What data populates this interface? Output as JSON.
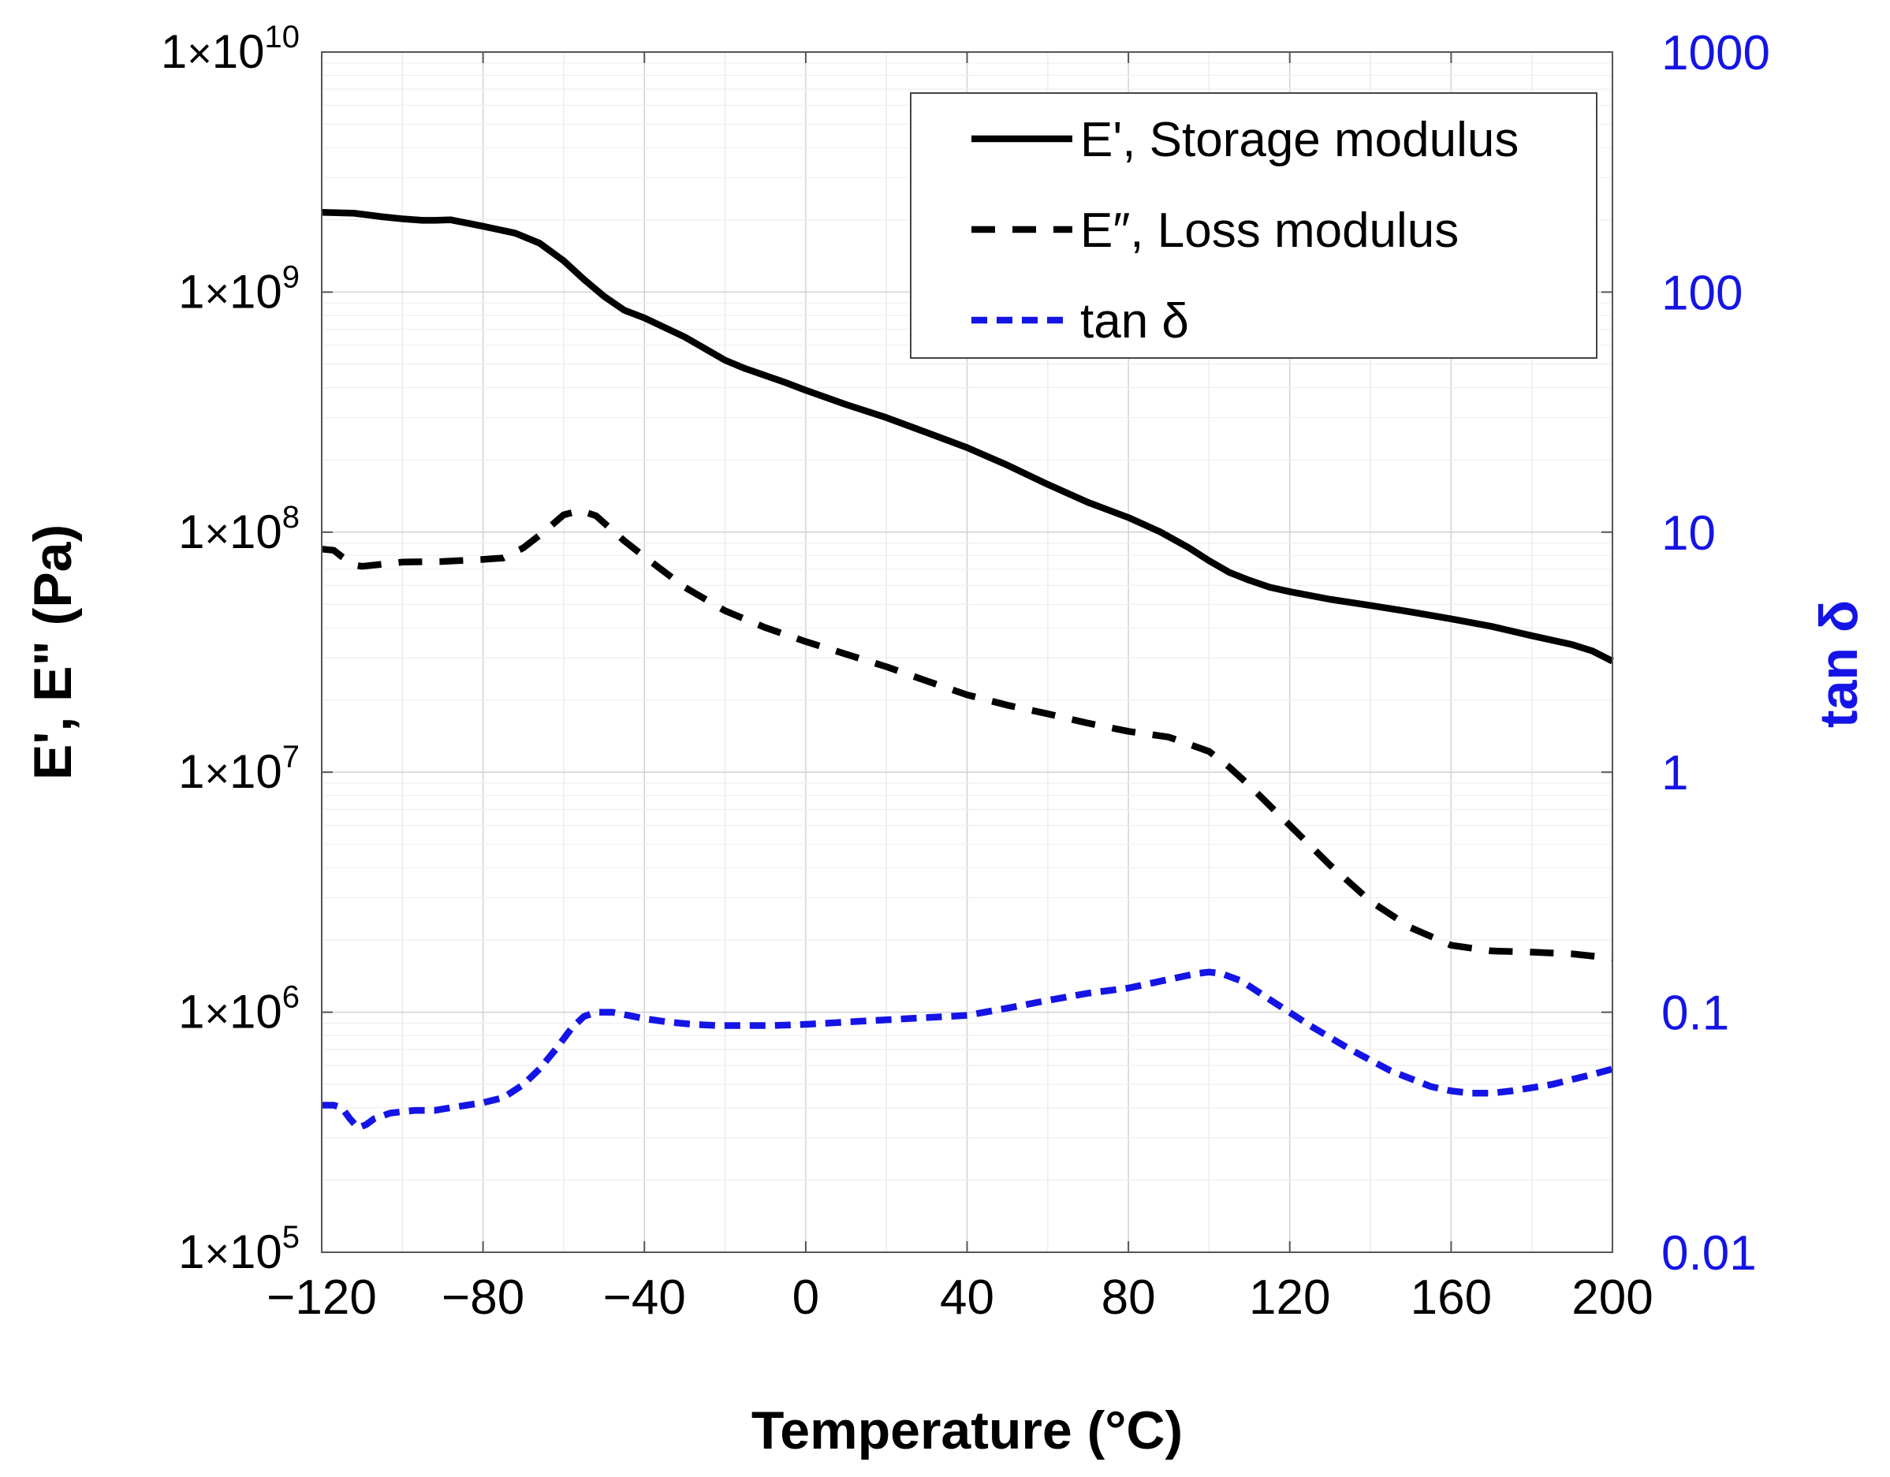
{
  "chart_data": {
    "type": "line",
    "xlabel": "Temperature (°C)",
    "ylabel": "E', E\" (Pa)",
    "y2label": "tan δ",
    "xlim": [
      -120,
      200
    ],
    "ylim": [
      100000,
      10000000000
    ],
    "y2lim": [
      0.01,
      1000
    ],
    "yscale": "log",
    "y2scale": "log",
    "grid": true,
    "legend_position": "top-right",
    "x_ticks": [
      -120,
      -80,
      -40,
      0,
      40,
      80,
      120,
      160,
      200
    ],
    "x_tick_labels": [
      "−120",
      "−80",
      "−40",
      "0",
      "40",
      "80",
      "120",
      "160",
      "200"
    ],
    "y_ticks": [
      {
        "value": 100000,
        "mantissa": "1",
        "times": "×",
        "base": "10",
        "exp": "5"
      },
      {
        "value": 1000000,
        "mantissa": "1",
        "times": "×",
        "base": "10",
        "exp": "6"
      },
      {
        "value": 10000000,
        "mantissa": "1",
        "times": "×",
        "base": "10",
        "exp": "7"
      },
      {
        "value": 100000000,
        "mantissa": "1",
        "times": "×",
        "base": "10",
        "exp": "8"
      },
      {
        "value": 1000000000,
        "mantissa": "1",
        "times": "×",
        "base": "10",
        "exp": "9"
      },
      {
        "value": 10000000000,
        "mantissa": "1",
        "times": "×",
        "base": "10",
        "exp": "10"
      }
    ],
    "y2_ticks": [
      {
        "value": 0.01,
        "label": "0.01"
      },
      {
        "value": 0.1,
        "label": "0.1"
      },
      {
        "value": 1,
        "label": "1"
      },
      {
        "value": 10,
        "label": "10"
      },
      {
        "value": 100,
        "label": "100"
      },
      {
        "value": 1000,
        "label": "1000"
      }
    ],
    "colors": {
      "storage": "#000000",
      "loss": "#000000",
      "tan": "#1414e6",
      "axis2": "#1414e6",
      "grid": "#dcdcdc"
    },
    "series": [
      {
        "name": "E', Storage modulus",
        "axis": "left",
        "style": "solid",
        "x": [
          -120,
          -112,
          -105,
          -100,
          -95,
          -92,
          -88,
          -80,
          -72,
          -66,
          -60,
          -55,
          -50,
          -45,
          -40,
          -30,
          -20,
          -15,
          -5,
          0,
          10,
          20,
          30,
          40,
          50,
          60,
          70,
          80,
          88,
          95,
          100,
          105,
          110,
          115,
          120,
          130,
          140,
          150,
          160,
          170,
          180,
          190,
          195,
          200
        ],
        "y": [
          2150000000,
          2130000000,
          2060000000,
          2020000000,
          1990000000,
          1990000000,
          2000000000,
          1880000000,
          1760000000,
          1600000000,
          1350000000,
          1130000000,
          960000000,
          840000000,
          780000000,
          650000000,
          520000000,
          480000000,
          420000000,
          390000000,
          340000000,
          300000000,
          260000000,
          225000000,
          190000000,
          158000000,
          133000000,
          115000000,
          100000000,
          86000000,
          76000000,
          68000000,
          63000000,
          59000000,
          56500000,
          52500000,
          49500000,
          46500000,
          43500000,
          40500000,
          37000000,
          34000000,
          32000000,
          29000000
        ]
      },
      {
        "name": "E″, Loss modulus",
        "axis": "left",
        "style": "dashed",
        "x": [
          -120,
          -117,
          -115,
          -112,
          -110,
          -100,
          -90,
          -80,
          -75,
          -70,
          -65,
          -60,
          -56,
          -52,
          -48,
          -45,
          -40,
          -30,
          -20,
          -10,
          0,
          10,
          20,
          30,
          40,
          50,
          60,
          70,
          80,
          90,
          100,
          105,
          110,
          120,
          130,
          140,
          150,
          160,
          170,
          180,
          190,
          200
        ],
        "y": [
          85000000,
          84000000,
          79000000,
          73000000,
          72000000,
          75000000,
          75500000,
          77000000,
          78000000,
          86000000,
          100000000,
          118000000,
          123000000,
          117000000,
          102000000,
          92000000,
          79000000,
          59000000,
          47000000,
          40000000,
          35000000,
          31000000,
          27500000,
          24000000,
          21000000,
          19000000,
          17500000,
          16000000,
          14800000,
          14000000,
          12200000,
          10500000,
          8800000,
          6000000,
          4100000,
          2900000,
          2250000,
          1900000,
          1800000,
          1780000,
          1750000,
          1680000
        ]
      },
      {
        "name": "tan δ",
        "axis": "right",
        "style": "dotted-dash",
        "x": [
          -120,
          -117,
          -115,
          -113,
          -111,
          -109,
          -107,
          -103,
          -97,
          -92,
          -88,
          -84,
          -80,
          -75,
          -70,
          -66,
          -62,
          -58,
          -55,
          -52,
          -48,
          -44,
          -40,
          -34,
          -28,
          -22,
          -15,
          -8,
          0,
          10,
          20,
          30,
          40,
          50,
          60,
          70,
          80,
          90,
          97,
          100,
          103,
          108,
          115,
          125,
          135,
          145,
          155,
          160,
          165,
          170,
          175,
          185,
          195,
          200
        ],
        "y": [
          0.041,
          0.041,
          0.04,
          0.036,
          0.033,
          0.034,
          0.036,
          0.038,
          0.039,
          0.039,
          0.04,
          0.041,
          0.042,
          0.044,
          0.05,
          0.058,
          0.07,
          0.086,
          0.096,
          0.1,
          0.1,
          0.097,
          0.094,
          0.091,
          0.089,
          0.088,
          0.088,
          0.088,
          0.089,
          0.091,
          0.093,
          0.095,
          0.097,
          0.104,
          0.112,
          0.12,
          0.126,
          0.137,
          0.145,
          0.147,
          0.145,
          0.135,
          0.113,
          0.088,
          0.07,
          0.057,
          0.049,
          0.047,
          0.046,
          0.046,
          0.047,
          0.05,
          0.055,
          0.058
        ]
      }
    ]
  }
}
